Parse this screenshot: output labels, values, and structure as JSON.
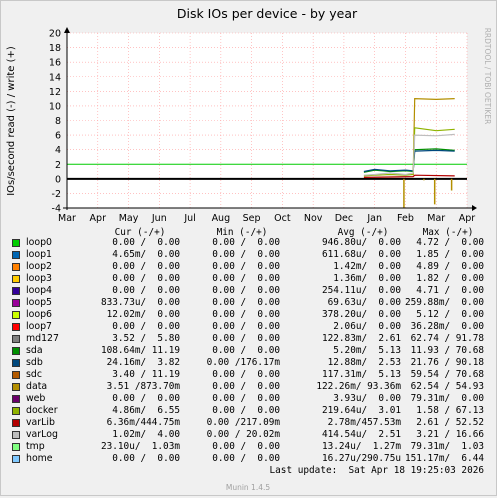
{
  "chart_data": {
    "type": "line",
    "title": "Disk IOs per device - by year",
    "ylabel": "IOs/second read (-) / write (+)",
    "watermark": "RRDTOOL / TOBI OETIKER",
    "ylim": [
      -4,
      20
    ],
    "yticks": [
      -4,
      -2,
      0,
      2,
      4,
      6,
      8,
      10,
      12,
      14,
      16,
      18,
      20
    ],
    "categories": [
      "Mar",
      "Apr",
      "May",
      "Jun",
      "Jul",
      "Aug",
      "Sep",
      "Oct",
      "Nov",
      "Dec",
      "Jan",
      "Feb",
      "Mar",
      "Apr"
    ],
    "grid": true,
    "reference_line": 2,
    "series": [
      {
        "name": "loop0",
        "color": "#00cc00"
      },
      {
        "name": "loop1",
        "color": "#0066b3"
      },
      {
        "name": "loop2",
        "color": "#ff8000"
      },
      {
        "name": "loop3",
        "color": "#ffcc00"
      },
      {
        "name": "loop4",
        "color": "#330099"
      },
      {
        "name": "loop5",
        "color": "#990099"
      },
      {
        "name": "loop6",
        "color": "#ccff00"
      },
      {
        "name": "loop7",
        "color": "#ff0000"
      },
      {
        "name": "md127",
        "color": "#808080"
      },
      {
        "name": "sda",
        "color": "#008f00",
        "points": [
          [
            9.65,
            0.9
          ],
          [
            10.0,
            1.2
          ],
          [
            10.5,
            1.0
          ],
          [
            11.0,
            1.1
          ],
          [
            11.25,
            1.0
          ],
          [
            11.3,
            4.0
          ],
          [
            12.0,
            4.1
          ],
          [
            12.6,
            3.9
          ]
        ]
      },
      {
        "name": "sdb",
        "color": "#00487d",
        "points": [
          [
            9.65,
            1.0
          ],
          [
            10.0,
            1.3
          ],
          [
            10.5,
            1.1
          ],
          [
            11.0,
            1.2
          ],
          [
            11.25,
            1.1
          ],
          [
            11.3,
            3.8
          ],
          [
            12.0,
            3.9
          ],
          [
            12.6,
            3.8
          ]
        ]
      },
      {
        "name": "sdc",
        "color": "#b35a00"
      },
      {
        "name": "data",
        "color": "#b38f00",
        "points": [
          [
            11.25,
            0.5
          ],
          [
            11.3,
            11.0
          ],
          [
            12.0,
            10.9
          ],
          [
            12.6,
            11.0
          ]
        ]
      },
      {
        "name": "web",
        "color": "#6b006b"
      },
      {
        "name": "docker",
        "color": "#8fb300",
        "points": [
          [
            9.65,
            0.4
          ],
          [
            10.0,
            0.5
          ],
          [
            10.5,
            0.6
          ],
          [
            11.0,
            0.5
          ],
          [
            11.25,
            0.6
          ],
          [
            11.3,
            7.0
          ],
          [
            12.0,
            6.6
          ],
          [
            12.6,
            6.8
          ]
        ]
      },
      {
        "name": "varLib",
        "color": "#b30000",
        "points": [
          [
            9.65,
            0.2
          ],
          [
            11.25,
            0.3
          ],
          [
            11.3,
            0.5
          ],
          [
            12.6,
            0.4
          ]
        ]
      },
      {
        "name": "varLog",
        "color": "#bebebe",
        "points": [
          [
            9.65,
            0.5
          ],
          [
            10.0,
            0.6
          ],
          [
            10.5,
            0.8
          ],
          [
            11.0,
            0.6
          ],
          [
            11.25,
            0.8
          ],
          [
            11.3,
            6.0
          ],
          [
            12.0,
            5.9
          ],
          [
            12.6,
            6.1
          ]
        ]
      },
      {
        "name": "tmp",
        "color": "#80ff80"
      },
      {
        "name": "home",
        "color": "#80c9ff"
      }
    ],
    "read_spikes": [
      [
        10.95,
        -4.0
      ],
      [
        11.6,
        -0.2
      ],
      [
        11.95,
        -3.5
      ],
      [
        12.5,
        -1.6
      ]
    ]
  },
  "legend": {
    "headers": [
      "Cur (-/+)",
      "Min (-/+)",
      "Avg (-/+)",
      "Max (-/+)"
    ],
    "rows": [
      {
        "name": "loop0",
        "cur": "0.00 /  0.00",
        "min": "0.00 /  0.00",
        "avg": "946.80u/  0.00",
        "max": "4.72 /  0.00"
      },
      {
        "name": "loop1",
        "cur": "4.65m/  0.00",
        "min": "0.00 /  0.00",
        "avg": "611.68u/  0.00",
        "max": "1.85 /  0.00"
      },
      {
        "name": "loop2",
        "cur": "0.00 /  0.00",
        "min": "0.00 /  0.00",
        "avg": "1.42m/  0.00",
        "max": "4.89 /  0.00"
      },
      {
        "name": "loop3",
        "cur": "0.00 /  0.00",
        "min": "0.00 /  0.00",
        "avg": "1.36m/  0.00",
        "max": "1.82 /  0.00"
      },
      {
        "name": "loop4",
        "cur": "0.00 /  0.00",
        "min": "0.00 /  0.00",
        "avg": "254.11u/  0.00",
        "max": "4.71 /  0.00"
      },
      {
        "name": "loop5",
        "cur": "833.73u/  0.00",
        "min": "0.00 /  0.00",
        "avg": "69.63u/  0.00",
        "max": "259.88m/  0.00"
      },
      {
        "name": "loop6",
        "cur": "12.02m/  0.00",
        "min": "0.00 /  0.00",
        "avg": "378.20u/  0.00",
        "max": "5.12 /  0.00"
      },
      {
        "name": "loop7",
        "cur": "0.00 /  0.00",
        "min": "0.00 /  0.00",
        "avg": "2.06u/  0.00",
        "max": "36.28m/  0.00"
      },
      {
        "name": "md127",
        "cur": "3.52 /  5.80",
        "min": "0.00 /  0.00",
        "avg": "122.83m/  2.61",
        "max": "62.74 / 91.78"
      },
      {
        "name": "sda",
        "cur": "108.64m/ 11.19",
        "min": "0.00 /  0.00",
        "avg": "5.20m/  5.13",
        "max": "11.93 / 70.68"
      },
      {
        "name": "sdb",
        "cur": "24.16m/  3.82",
        "min": "0.00 /176.17m",
        "avg": "12.88m/  2.53",
        "max": "21.76 / 90.18"
      },
      {
        "name": "sdc",
        "cur": "3.40 / 11.19",
        "min": "0.00 /  0.00",
        "avg": "117.31m/  5.13",
        "max": "59.54 / 70.68"
      },
      {
        "name": "data",
        "cur": "3.51 /873.70m",
        "min": "0.00 /  0.00",
        "avg": "122.26m/ 93.36m",
        "max": "62.54 / 54.93"
      },
      {
        "name": "web",
        "cur": "0.00 /  0.00",
        "min": "0.00 /  0.00",
        "avg": "3.93u/  0.00",
        "max": "79.31m/  0.00"
      },
      {
        "name": "docker",
        "cur": "4.86m/  6.55",
        "min": "0.00 /  0.00",
        "avg": "219.64u/  3.01",
        "max": "1.58 / 67.13"
      },
      {
        "name": "varLib",
        "cur": "6.36m/444.75m",
        "min": "0.00 /217.09m",
        "avg": "2.78m/457.53m",
        "max": "2.61 / 52.52"
      },
      {
        "name": "varLog",
        "cur": "1.02m/  4.00",
        "min": "0.00 / 20.02m",
        "avg": "414.54u/  2.51",
        "max": "3.21 / 16.66"
      },
      {
        "name": "tmp",
        "cur": "23.10u/  1.03m",
        "min": "0.00 /  0.00",
        "avg": "13.24u/  1.27m",
        "max": "79.31m/  1.03"
      },
      {
        "name": "home",
        "cur": "0.00 /  0.00",
        "min": "0.00 /  0.00",
        "avg": "16.27u/290.75u",
        "max": "151.17m/  6.44"
      }
    ],
    "last_update": "Last update:  Sat Apr 18 19:25:03 2026"
  },
  "footer": "Munin 1.4.5"
}
